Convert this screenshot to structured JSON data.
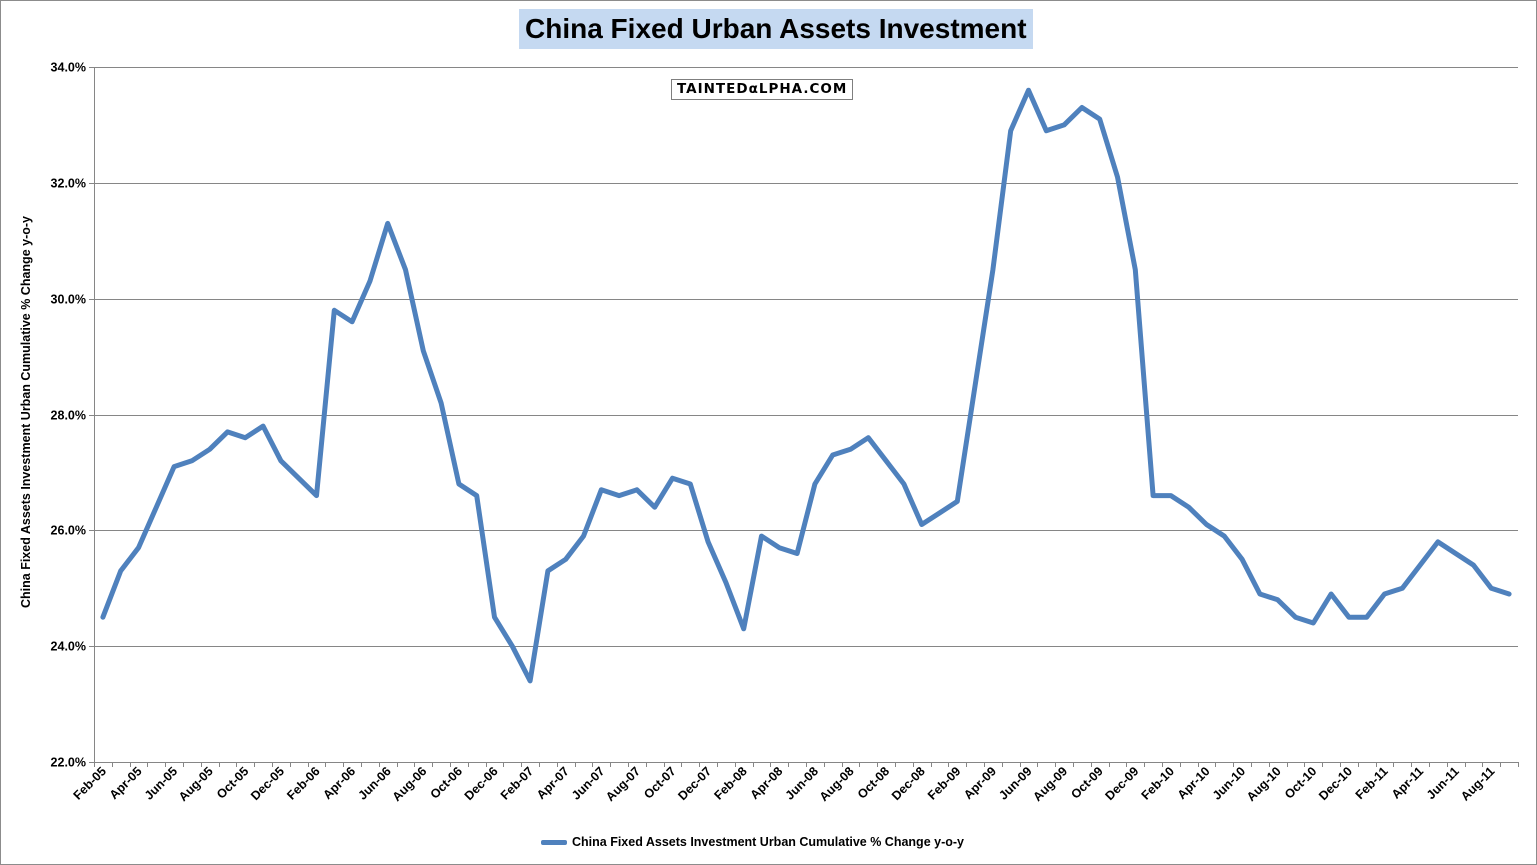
{
  "chart_data": {
    "type": "line",
    "title": "China Fixed Urban Assets Investment",
    "ylabel": "China Fixed Assets Investment Urban Cumulative % Change y-o-y",
    "xlabel": "",
    "ylim": [
      22.0,
      34.0
    ],
    "y_ticks": [
      "22.0%",
      "24.0%",
      "26.0%",
      "28.0%",
      "30.0%",
      "32.0%",
      "34.0%"
    ],
    "y_tick_values": [
      22,
      24,
      26,
      28,
      30,
      32,
      34
    ],
    "grid": true,
    "legend": "bottom",
    "x_tick_labels": [
      "Feb-05",
      "Apr-05",
      "Jun-05",
      "Aug-05",
      "Oct-05",
      "Dec-05",
      "Feb-06",
      "Apr-06",
      "Jun-06",
      "Aug-06",
      "Oct-06",
      "Dec-06",
      "Feb-07",
      "Apr-07",
      "Jun-07",
      "Aug-07",
      "Oct-07",
      "Dec-07",
      "Feb-08",
      "Apr-08",
      "Jun-08",
      "Aug-08",
      "Oct-08",
      "Dec-08",
      "Feb-09",
      "Apr-09",
      "Jun-09",
      "Aug-09",
      "Oct-09",
      "Dec-09",
      "Feb-10",
      "Apr-10",
      "Jun-10",
      "Aug-10",
      "Oct-10",
      "Dec-10",
      "Feb-11",
      "Apr-11",
      "Jun-11",
      "Aug-11"
    ],
    "x_tick_indices": [
      0,
      2,
      4,
      6,
      8,
      10,
      12,
      14,
      16,
      18,
      20,
      22,
      24,
      26,
      28,
      30,
      32,
      34,
      36,
      38,
      40,
      42,
      44,
      46,
      48,
      50,
      52,
      54,
      56,
      58,
      60,
      62,
      64,
      66,
      68,
      70,
      72,
      74,
      76,
      78
    ],
    "series": [
      {
        "name": "China Fixed Assets Investment Urban Cumulative % Change y-o-y",
        "color": "#4f81bd",
        "values": [
          24.5,
          25.3,
          25.7,
          26.4,
          27.1,
          27.2,
          27.4,
          27.7,
          27.6,
          27.8,
          27.2,
          26.9,
          26.6,
          29.8,
          29.6,
          30.3,
          31.3,
          30.5,
          29.1,
          28.2,
          26.8,
          26.6,
          24.5,
          24.0,
          23.4,
          25.3,
          25.5,
          25.9,
          26.7,
          26.6,
          26.7,
          26.4,
          26.9,
          26.8,
          25.8,
          25.1,
          24.3,
          25.9,
          25.7,
          25.6,
          26.8,
          27.3,
          27.4,
          27.6,
          27.2,
          26.8,
          26.1,
          26.3,
          26.5,
          28.5,
          30.5,
          32.9,
          33.6,
          32.9,
          33.0,
          33.3,
          33.1,
          32.1,
          30.5,
          26.6,
          26.6,
          26.4,
          26.1,
          25.9,
          25.5,
          24.9,
          24.8,
          24.5,
          24.4,
          24.9,
          24.5,
          24.5,
          24.9,
          25.0,
          25.4,
          25.8,
          25.6,
          25.4,
          25.0,
          24.9
        ]
      }
    ]
  },
  "watermark": {
    "text": "TAINTEDαLPHA.COM"
  }
}
